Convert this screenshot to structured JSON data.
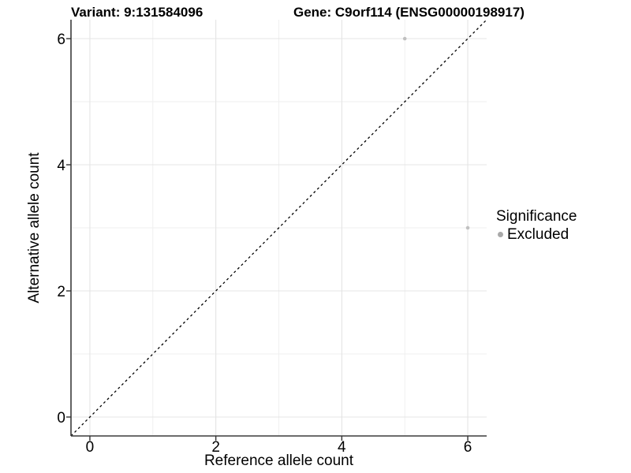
{
  "chart_data": {
    "type": "scatter",
    "title_left": "Variant: 9:131584096",
    "title_right": "Gene: C9orf114 (ENSG00000198917)",
    "xlabel": "Reference allele count",
    "ylabel": "Alternative allele count",
    "xlim": [
      -0.3,
      6.3
    ],
    "ylim": [
      -0.3,
      6.3
    ],
    "xticks": [
      0,
      2,
      4,
      6
    ],
    "yticks": [
      0,
      2,
      4,
      6
    ],
    "minor_xticks": [
      1,
      3,
      5
    ],
    "minor_yticks": [
      1,
      3,
      5
    ],
    "grid": true,
    "series": [
      {
        "name": "Excluded",
        "color": "#c0c0c0",
        "points": [
          {
            "x": 5,
            "y": 6
          },
          {
            "x": 6,
            "y": 3
          }
        ]
      }
    ],
    "reference_line": {
      "type": "identity",
      "slope": 1,
      "intercept": 0,
      "style": "dashed",
      "color": "#000000"
    },
    "legend": {
      "title": "Significance",
      "position": "right",
      "entries": [
        {
          "label": "Excluded",
          "color": "#a9a9a9"
        }
      ]
    },
    "colors": {
      "major_grid": "#e4e4e4",
      "minor_grid": "#efefef",
      "axis_line": "#3c3c3c",
      "tick_mark": "#333333",
      "tick_text": "#000000",
      "background": "#ffffff"
    }
  }
}
